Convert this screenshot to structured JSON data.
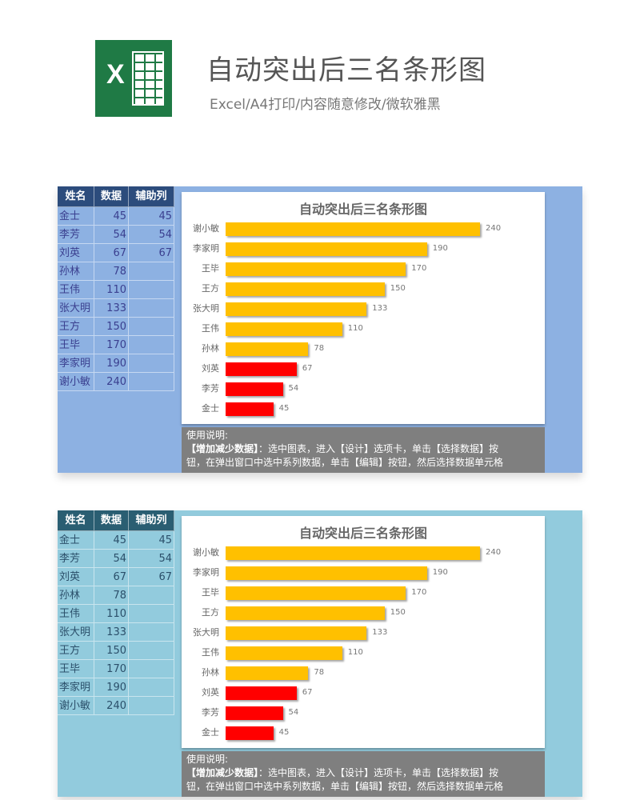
{
  "header": {
    "logo_text": "X",
    "title": "自动突出后三名条形图",
    "subtitle": "Excel/A4打印/内容随意修改/微软雅黑"
  },
  "panels": [
    {
      "bg": "#8db1e2",
      "header_bg": "#2c4c7c",
      "text_color": "#3a3f8f"
    },
    {
      "bg": "#92cbdd",
      "header_bg": "#2a5e72",
      "text_color": "#2b4f6a"
    }
  ],
  "table": {
    "columns": [
      "姓名",
      "数据",
      "辅助列"
    ],
    "rows": [
      [
        "金士",
        "45",
        "45"
      ],
      [
        "李芳",
        "54",
        "54"
      ],
      [
        "刘英",
        "67",
        "67"
      ],
      [
        "孙林",
        "78",
        ""
      ],
      [
        "王伟",
        "110",
        ""
      ],
      [
        "张大明",
        "133",
        ""
      ],
      [
        "王方",
        "150",
        ""
      ],
      [
        "王毕",
        "170",
        ""
      ],
      [
        "李家明",
        "190",
        ""
      ],
      [
        "谢小敏",
        "240",
        ""
      ]
    ]
  },
  "instructions": {
    "heading": "使用说明:",
    "bold": "【增加减少数据】",
    "line1": "：选中图表，进入【设计】选项卡，单击【选择数据】按",
    "line2": "钮，在弹出窗口中选中系列数据，单击【编辑】按钮，然后选择数据单元格"
  },
  "chart_data": [
    {
      "type": "bar",
      "orientation": "horizontal",
      "title": "自动突出后三名条形图",
      "categories": [
        "谢小敏",
        "李家明",
        "王毕",
        "王方",
        "张大明",
        "王伟",
        "孙林",
        "刘英",
        "李芳",
        "金士"
      ],
      "values": [
        240,
        190,
        170,
        150,
        133,
        110,
        78,
        67,
        54,
        45
      ],
      "highlight_bottom": 3,
      "colors": {
        "normal": "#ffc000",
        "highlight": "#ff0000"
      },
      "xlim": [
        0,
        240
      ],
      "grid": false,
      "data_labels": true
    },
    {
      "type": "bar",
      "orientation": "horizontal",
      "title": "自动突出后三名条形图",
      "categories": [
        "谢小敏",
        "李家明",
        "王毕",
        "王方",
        "张大明",
        "王伟",
        "孙林",
        "刘英",
        "李芳",
        "金士"
      ],
      "values": [
        240,
        190,
        170,
        150,
        133,
        110,
        78,
        67,
        54,
        45
      ],
      "highlight_bottom": 3,
      "colors": {
        "normal": "#ffc000",
        "highlight": "#ff0000"
      },
      "xlim": [
        0,
        240
      ],
      "grid": false,
      "data_labels": true
    }
  ]
}
